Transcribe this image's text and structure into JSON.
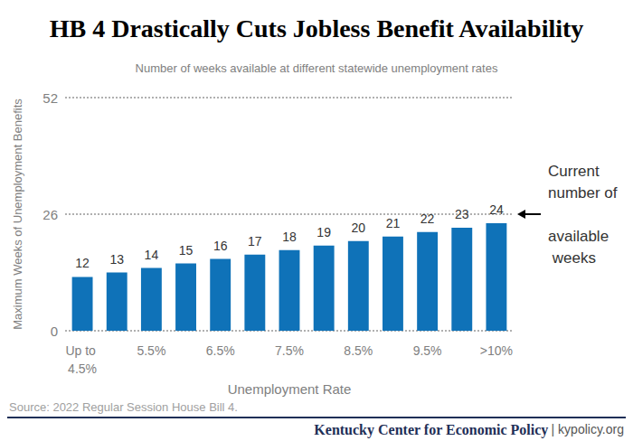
{
  "chart_data": {
    "type": "bar",
    "title": "HB 4 Drastically Cuts Jobless Benefit Availability",
    "subtitle": "Number of weeks available at different statewide unemployment rates",
    "x_label": "Unemployment Rate",
    "y_label": "Maximum Weeks of Unemployment Benefits",
    "categories": [
      "Up to 4.5%",
      null,
      "5.5%",
      null,
      "6.5%",
      null,
      "7.5%",
      null,
      "8.5%",
      null,
      "9.5%",
      null,
      ">10%"
    ],
    "values": [
      12,
      13,
      14,
      15,
      16,
      17,
      18,
      19,
      20,
      21,
      22,
      23,
      24
    ],
    "color": "#0f72b8",
    "ylim": [
      0,
      52
    ],
    "yticks": [
      0,
      26,
      52
    ],
    "grid": true,
    "data_labels": true,
    "annotations": [
      {
        "text": "Current number of available weeks",
        "y": 26
      }
    ],
    "source": "Source: 2022 Regular Session House Bill 4.",
    "footer": [
      "Kentucky Center for Economic Policy",
      "| kypolicy.org"
    ]
  }
}
